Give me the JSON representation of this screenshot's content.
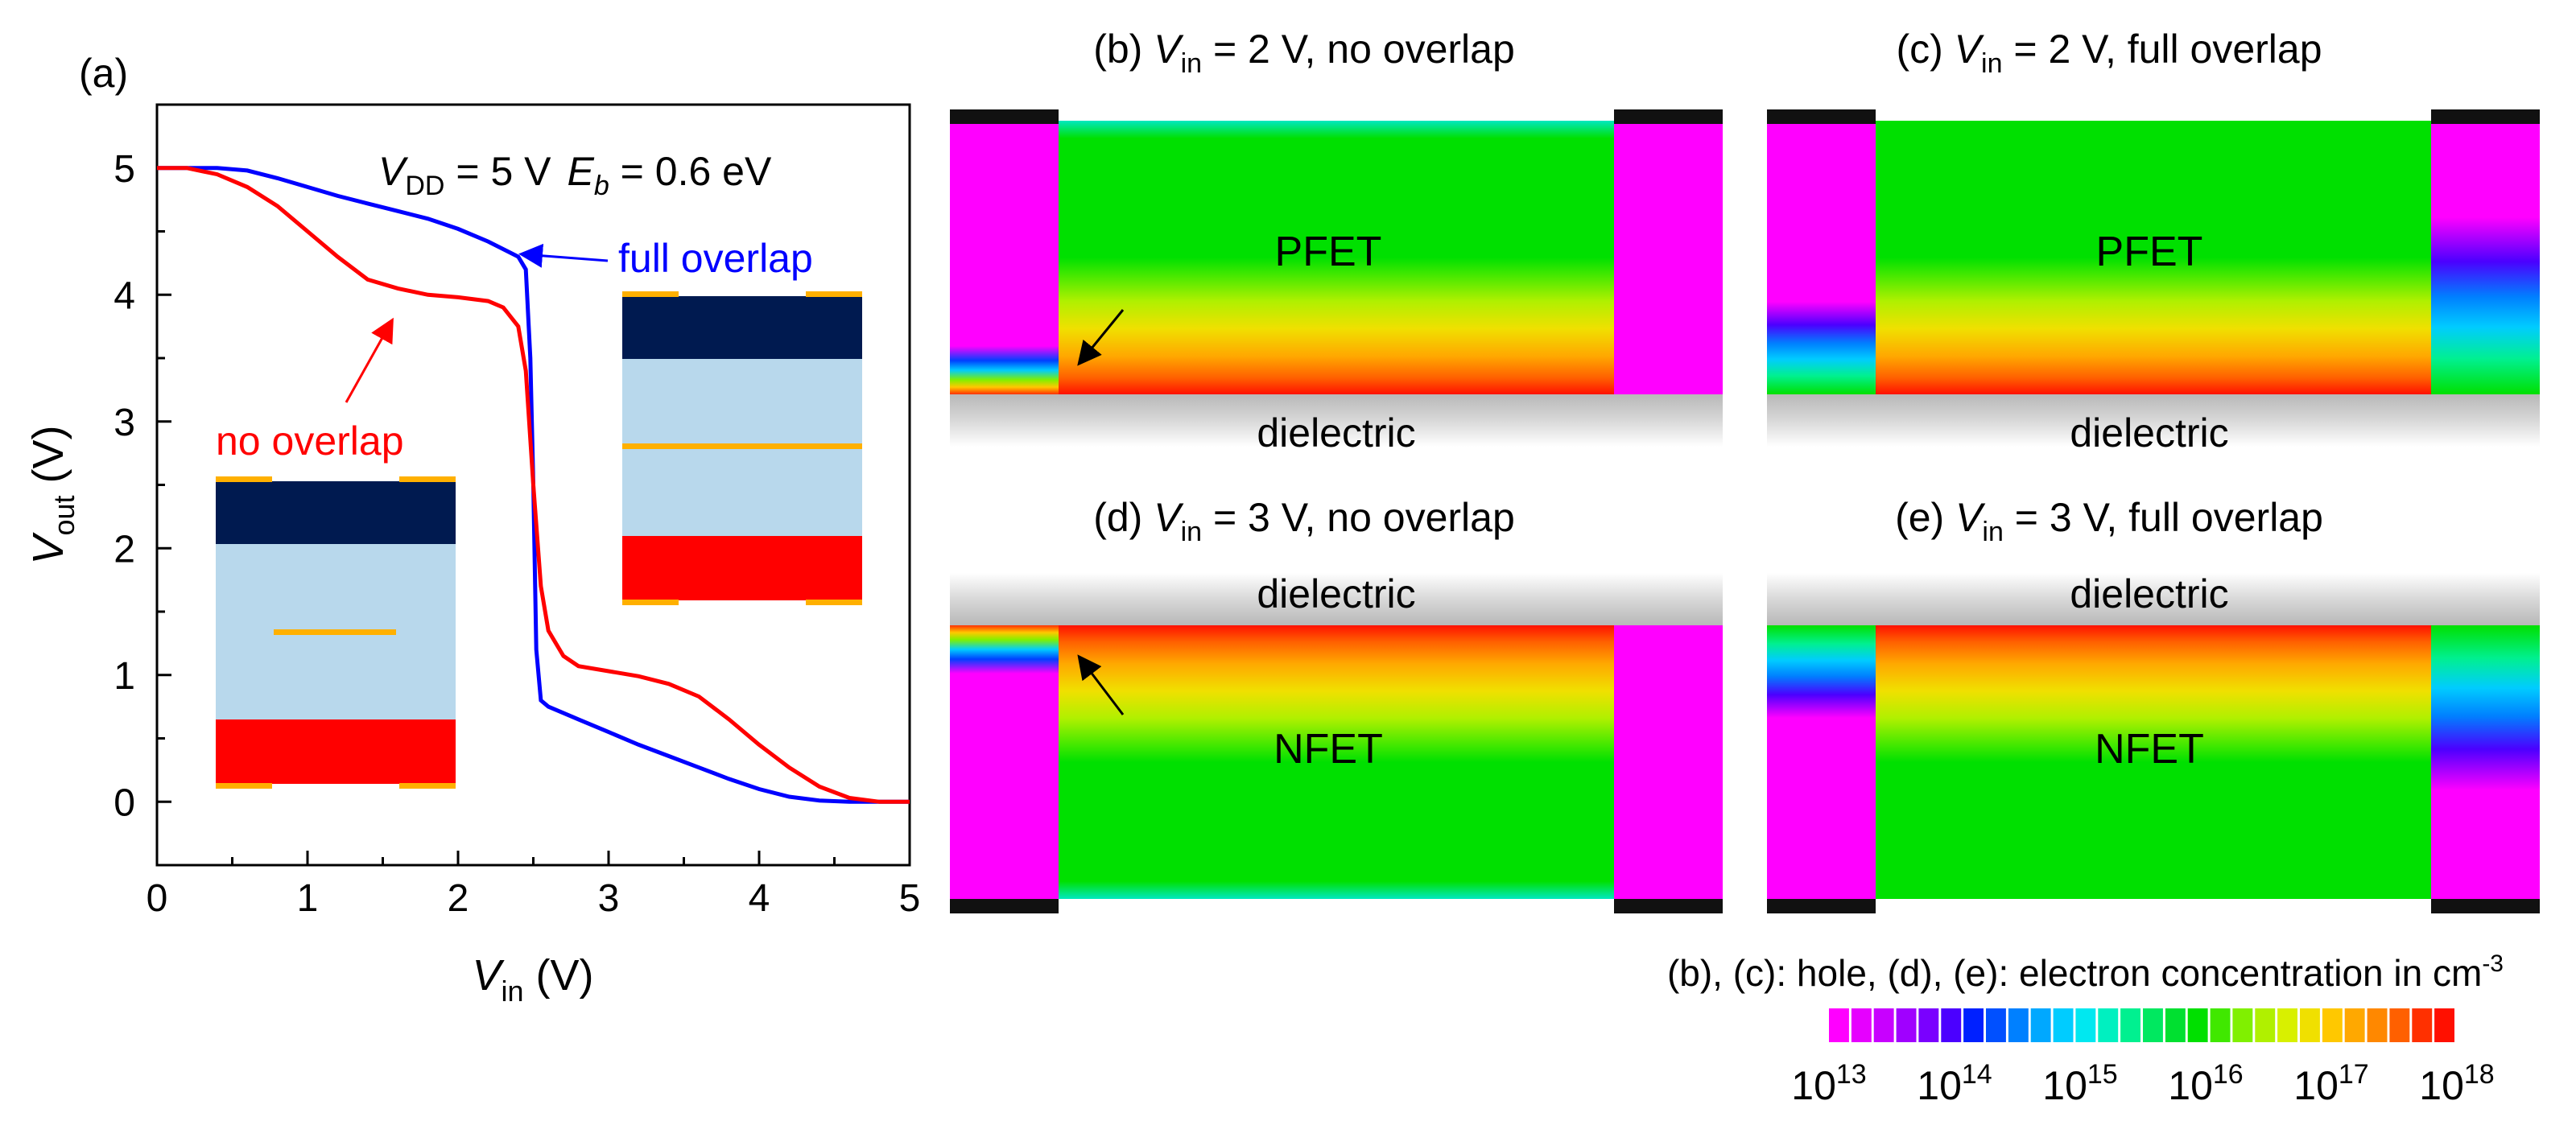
{
  "panel_a": {
    "label": "(a)",
    "annotation": {
      "vdd_sym": "V",
      "vdd_sub": "DD",
      "vdd_val": " = 5 V",
      "eb_sym": "E",
      "eb_sub": "b",
      "eb_val": " = 0.6 eV"
    },
    "full_overlap_label": "full overlap",
    "no_overlap_label": "no overlap",
    "colors": {
      "full": "#0000ff",
      "none": "#ff0000",
      "navy": "#001a50",
      "light": "#b8d8ec",
      "red": "#ff0000",
      "gate": "#ffb000"
    }
  },
  "chart_data": {
    "type": "line",
    "title": "",
    "xlabel": "V_in (V)",
    "ylabel": "V_out (V)",
    "x_label_sym": "V",
    "x_label_sub": "in",
    "x_label_unit": " (V)",
    "y_label_sym": "V",
    "y_label_sub": "out",
    "y_label_unit": " (V)",
    "xlim": [
      0,
      5
    ],
    "ylim": [
      -0.5,
      5.5
    ],
    "xticks": [
      "0",
      "1",
      "2",
      "3",
      "4",
      "5"
    ],
    "yticks": [
      "0",
      "1",
      "2",
      "3",
      "4",
      "5"
    ],
    "series": [
      {
        "name": "full overlap",
        "color": "#0000ff",
        "x": [
          0,
          0.2,
          0.4,
          0.6,
          0.8,
          1.0,
          1.2,
          1.4,
          1.6,
          1.8,
          2.0,
          2.2,
          2.4,
          2.45,
          2.48,
          2.5,
          2.52,
          2.55,
          2.6,
          2.8,
          3.0,
          3.2,
          3.4,
          3.6,
          3.8,
          4.0,
          4.2,
          4.4,
          4.6,
          4.8,
          5.0
        ],
        "y": [
          5.0,
          5.0,
          5.0,
          4.98,
          4.92,
          4.85,
          4.78,
          4.72,
          4.66,
          4.6,
          4.52,
          4.42,
          4.3,
          4.2,
          3.5,
          2.5,
          1.2,
          0.8,
          0.75,
          0.65,
          0.55,
          0.45,
          0.36,
          0.27,
          0.18,
          0.1,
          0.04,
          0.01,
          0.0,
          0.0,
          0.0
        ]
      },
      {
        "name": "no overlap",
        "color": "#ff0000",
        "x": [
          0,
          0.2,
          0.4,
          0.6,
          0.8,
          1.0,
          1.2,
          1.4,
          1.6,
          1.8,
          2.0,
          2.2,
          2.3,
          2.4,
          2.45,
          2.5,
          2.55,
          2.6,
          2.7,
          2.8,
          3.0,
          3.2,
          3.4,
          3.6,
          3.8,
          4.0,
          4.2,
          4.4,
          4.6,
          4.8,
          5.0
        ],
        "y": [
          5.0,
          5.0,
          4.95,
          4.85,
          4.7,
          4.5,
          4.3,
          4.12,
          4.05,
          4.0,
          3.98,
          3.95,
          3.9,
          3.75,
          3.4,
          2.5,
          1.7,
          1.35,
          1.15,
          1.07,
          1.03,
          0.99,
          0.93,
          0.83,
          0.65,
          0.45,
          0.27,
          0.12,
          0.03,
          0.0,
          0.0
        ]
      }
    ]
  },
  "sim_panels": {
    "b": {
      "title_pre": "(b) ",
      "sym": "V",
      "sub": "in",
      "title_post": " = 2 V, no overlap",
      "device": "PFET",
      "dielectric": "dielectric"
    },
    "c": {
      "title_pre": "(c) ",
      "sym": "V",
      "sub": "in",
      "title_post": " = 2 V, full overlap",
      "device": "PFET",
      "dielectric": "dielectric"
    },
    "d": {
      "title_pre": "(d) ",
      "sym": "V",
      "sub": "in",
      "title_post": " = 3 V, no overlap",
      "device": "NFET",
      "dielectric": "dielectric"
    },
    "e": {
      "title_pre": "(e) ",
      "sym": "V",
      "sub": "in",
      "title_post": " = 3 V, full overlap",
      "device": "NFET",
      "dielectric": "dielectric"
    }
  },
  "colorbar": {
    "caption": "(b), (c): hole, (d), (e): electron concentration in cm",
    "caption_sup": "-3",
    "ticks": [
      {
        "base": "10",
        "exp": "13"
      },
      {
        "base": "10",
        "exp": "14"
      },
      {
        "base": "10",
        "exp": "15"
      },
      {
        "base": "10",
        "exp": "16"
      },
      {
        "base": "10",
        "exp": "17"
      },
      {
        "base": "10",
        "exp": "18"
      }
    ],
    "colors": [
      "#ff00ff",
      "#e600ff",
      "#c800ff",
      "#a000ff",
      "#7a00ff",
      "#4b00ff",
      "#0020ff",
      "#0050ff",
      "#0080ff",
      "#00a8ff",
      "#00ccff",
      "#00e8f0",
      "#00f0c0",
      "#00f090",
      "#00e860",
      "#00e030",
      "#00e000",
      "#40e800",
      "#80f000",
      "#b0f000",
      "#d8f000",
      "#f0e000",
      "#ffc800",
      "#ffa800",
      "#ff8800",
      "#ff6000",
      "#ff3000",
      "#ff1000"
    ]
  }
}
